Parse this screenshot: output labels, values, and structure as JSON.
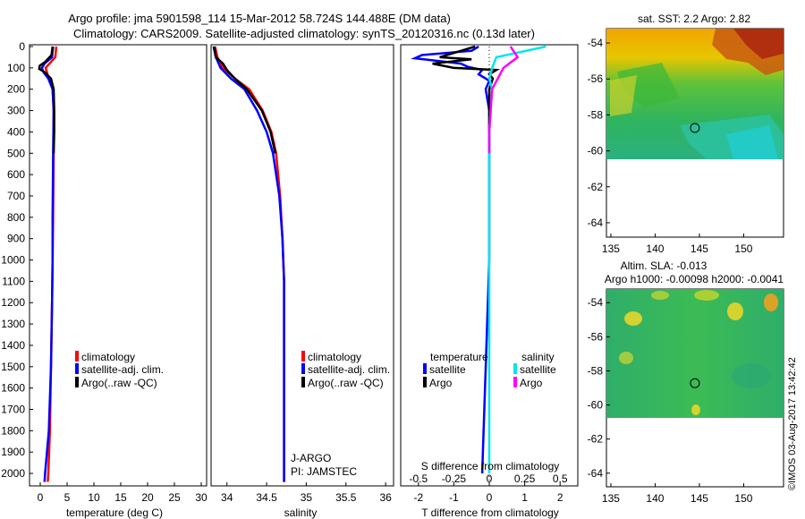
{
  "header": {
    "title_line1": "Argo profile: jma 5901598_114 15-Mar-2012 58.724S 144.488E (DM data)",
    "title_line2": "Climatology: CARS2009. Satellite-adjusted climatology: synTS_20120316.nc (0.13d later)"
  },
  "footer": {
    "credit": "©IMOS 03-Aug-2017 13:42:42"
  },
  "colors": {
    "climatology": "#ff0000",
    "satellite": "#0000ff",
    "argo": "#000000",
    "sal_satellite": "#00e5ee",
    "sal_argo": "#ff00ff"
  },
  "chart_data": [
    {
      "type": "line",
      "id": "temperature",
      "xlabel": "temperature (deg C)",
      "xlim": [
        -2,
        31
      ],
      "ylim": [
        2050,
        0
      ],
      "x_ticks": [
        "0",
        "5",
        "10",
        "15",
        "20",
        "25",
        "30"
      ],
      "x_tick_values": [
        0,
        5,
        10,
        15,
        20,
        25,
        30
      ],
      "y_ticks": [
        "0",
        "100",
        "200",
        "300",
        "400",
        "500",
        "600",
        "700",
        "800",
        "900",
        "1000",
        "1100",
        "1200",
        "1300",
        "1400",
        "1500",
        "1600",
        "1700",
        "1800",
        "1900",
        "2000"
      ],
      "legend": [
        "climatology",
        "satellite-adj. clim.",
        "Argo(..raw -QC)"
      ],
      "series": [
        {
          "name": "climatology",
          "color": "#ff0000",
          "depth": [
            0,
            50,
            100,
            150,
            200,
            300,
            500,
            800,
            1000,
            1200,
            1500,
            1800,
            2000,
            2040
          ],
          "values": [
            3.0,
            2.8,
            1.0,
            1.6,
            2.3,
            2.5,
            2.5,
            2.4,
            2.3,
            2.2,
            2.0,
            1.8,
            1.5,
            1.4
          ]
        },
        {
          "name": "satellite-adj. clim.",
          "color": "#0000ff",
          "depth": [
            0,
            50,
            80,
            100,
            120,
            150,
            200,
            300,
            500,
            800,
            1000,
            1200,
            1500,
            1800,
            2000,
            2040
          ],
          "values": [
            2.4,
            2.2,
            0.8,
            0.3,
            0.6,
            1.5,
            2.3,
            2.5,
            2.4,
            2.3,
            2.3,
            2.2,
            2.0,
            1.6,
            0.9,
            0.8
          ]
        },
        {
          "name": "Argo(..raw -QC)",
          "color": "#000000",
          "depth": [
            0,
            40,
            70,
            90,
            105,
            120,
            150,
            200,
            300,
            400,
            500
          ],
          "values": [
            2.3,
            2.1,
            1.0,
            -0.1,
            -0.2,
            0.8,
            2.0,
            2.5,
            2.6,
            2.6,
            2.5
          ]
        }
      ]
    },
    {
      "type": "line",
      "id": "salinity",
      "xlabel": "salinity",
      "xlim": [
        33.8,
        36.1
      ],
      "ylim": [
        2050,
        0
      ],
      "x_ticks": [
        "34",
        "34.5",
        "35",
        "35.5",
        "36"
      ],
      "x_tick_values": [
        34,
        34.5,
        35,
        35.5,
        36
      ],
      "legend": [
        "climatology",
        "satellite-adj. clim.",
        "Argo(..raw -QC)"
      ],
      "annotations": [
        "J-ARGO",
        "PI: JAMSTEC"
      ],
      "series": [
        {
          "name": "climatology",
          "color": "#ff0000",
          "depth": [
            0,
            50,
            100,
            150,
            200,
            300,
            400,
            500,
            700,
            900,
            1100,
            1500,
            2000,
            2040
          ],
          "values": [
            33.85,
            33.88,
            33.95,
            34.1,
            34.28,
            34.45,
            34.56,
            34.62,
            34.67,
            34.7,
            34.72,
            34.72,
            34.72,
            34.72
          ]
        },
        {
          "name": "satellite-adj. clim.",
          "color": "#0000ff",
          "depth": [
            0,
            50,
            100,
            150,
            200,
            300,
            400,
            500,
            700,
            900,
            1100,
            1500,
            2000,
            2040
          ],
          "values": [
            33.83,
            33.86,
            33.92,
            34.05,
            34.22,
            34.38,
            34.5,
            34.58,
            34.66,
            34.7,
            34.72,
            34.72,
            34.72,
            34.72
          ]
        },
        {
          "name": "Argo(..raw -QC)",
          "color": "#000000",
          "depth": [
            0,
            50,
            80,
            110,
            150,
            200,
            300,
            400,
            500
          ],
          "values": [
            33.84,
            33.86,
            33.95,
            34.0,
            34.1,
            34.25,
            34.44,
            34.55,
            34.61
          ]
        }
      ]
    },
    {
      "type": "line",
      "id": "difference",
      "xlabel": "T difference from climatology",
      "xlabel_top": "S difference from climatology",
      "xlim": [
        -2.5,
        2.5
      ],
      "ylim": [
        2050,
        0
      ],
      "x_ticks": [
        "-2",
        "-1",
        "0",
        "1",
        "2"
      ],
      "x_tick_values": [
        -2,
        -1,
        0,
        1,
        2
      ],
      "x_ticks_secondary": [
        "-0.5",
        "-0.25",
        "0",
        "0.25",
        "0.5"
      ],
      "x_ticks_secondary_values": [
        -0.5,
        -0.25,
        0,
        0.25,
        0.5
      ],
      "legend_temperature": {
        "title": "temperature",
        "items": [
          "satellite",
          "Argo"
        ]
      },
      "legend_salinity": {
        "title": "salinity",
        "items": [
          "satellite",
          "Argo"
        ]
      },
      "series": [
        {
          "name": "temperature satellite",
          "color": "#0000ff",
          "depth": [
            0,
            20,
            40,
            55,
            70,
            80,
            95,
            110,
            130,
            160,
            200,
            300,
            500,
            1000,
            2000
          ],
          "values": [
            -0.3,
            -0.5,
            -1.9,
            -2.1,
            -1.3,
            -0.8,
            -0.6,
            -0.2,
            -0.3,
            0.0,
            -0.1,
            0.0,
            0.0,
            0.0,
            -0.2
          ]
        },
        {
          "name": "temperature Argo",
          "color": "#000000",
          "depth": [
            0,
            20,
            50,
            60,
            80,
            100,
            110,
            130,
            150,
            200,
            300,
            500
          ],
          "values": [
            -0.4,
            -0.8,
            -1.4,
            -0.5,
            -1.6,
            -1.0,
            0.2,
            0.0,
            0.1,
            0.0,
            0.0,
            0.0
          ]
        },
        {
          "name": "salinity satellite",
          "color": "#00e5ee",
          "depth": [
            0,
            50,
            100,
            150,
            200,
            400,
            1000,
            2000
          ],
          "values": [
            0.4,
            0.05,
            0.02,
            0.0,
            0.02,
            0.0,
            0.0,
            0.0
          ]
        },
        {
          "name": "salinity Argo",
          "color": "#ff00ff",
          "depth": [
            0,
            50,
            100,
            200,
            400,
            500
          ],
          "values": [
            0.15,
            0.2,
            0.1,
            0.02,
            0.0,
            0.0
          ]
        }
      ]
    },
    {
      "type": "heatmap",
      "id": "sst_map",
      "title": "sat. SST: 2.2 Argo: 2.82",
      "x_ticks": [
        "135",
        "140",
        "145",
        "150"
      ],
      "x_tick_values": [
        135,
        140,
        145,
        150
      ],
      "y_ticks": [
        "-54",
        "-56",
        "-58",
        "-60",
        "-62",
        "-64"
      ],
      "y_tick_values": [
        -54,
        -56,
        -58,
        -60,
        -62,
        -64
      ],
      "xlim": [
        134.5,
        154.5
      ],
      "ylim": [
        -64.8,
        -53.2
      ],
      "data_bottom": -60,
      "profile_marker": [
        144.488,
        -58.724
      ]
    },
    {
      "type": "heatmap",
      "id": "sla_map",
      "title_line1": "Altim. SLA: -0.013",
      "title_line2": "Argo h1000: -0.00098 h2000: -0.0041",
      "x_ticks": [
        "135",
        "140",
        "145",
        "150"
      ],
      "x_tick_values": [
        135,
        140,
        145,
        150
      ],
      "y_ticks": [
        "-54",
        "-56",
        "-58",
        "-60",
        "-62",
        "-64"
      ],
      "y_tick_values": [
        -54,
        -56,
        -58,
        -60,
        -62,
        -64
      ],
      "xlim": [
        134.5,
        154.5
      ],
      "ylim": [
        -64.8,
        -53.2
      ],
      "data_bottom": -60,
      "profile_marker": [
        144.488,
        -58.724
      ]
    }
  ]
}
